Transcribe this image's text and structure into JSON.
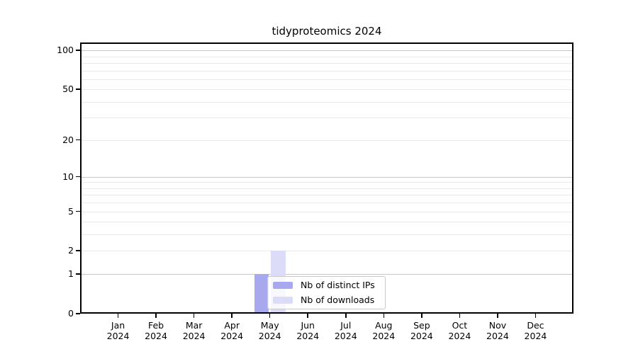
{
  "title": "tidyproteomics 2024",
  "chart_data": {
    "type": "bar",
    "title": "tidyproteomics 2024",
    "categories": [
      "Jan",
      "Feb",
      "Mar",
      "Apr",
      "May",
      "Jun",
      "Jul",
      "Aug",
      "Sep",
      "Oct",
      "Nov",
      "Dec"
    ],
    "category_year": "2024",
    "series": [
      {
        "name": "Nb of distinct IPs",
        "color": "#a8a8ee",
        "values": [
          0,
          0,
          0,
          0,
          1,
          0,
          0,
          0,
          0,
          0,
          0,
          0
        ]
      },
      {
        "name": "Nb of downloads",
        "color": "#dcdcf8",
        "values": [
          0,
          0,
          0,
          0,
          2,
          0,
          0,
          0,
          0,
          0,
          0,
          0
        ]
      }
    ],
    "xlabel": "",
    "ylabel": "",
    "y_axis": {
      "scale": "log1p",
      "labeled_ticks": [
        0,
        1,
        2,
        5,
        10,
        20,
        50,
        100
      ],
      "major_gridlines": [
        1,
        10,
        100
      ],
      "minor_gridlines": [
        2,
        3,
        4,
        5,
        6,
        7,
        8,
        9,
        20,
        30,
        40,
        50,
        60,
        70,
        80,
        90
      ],
      "min": 0,
      "max": 115
    },
    "grid": "horizontal",
    "legend": {
      "position": "inside-bottom-center",
      "entries": [
        "Nb of distinct IPs",
        "Nb of downloads"
      ]
    },
    "colors": {
      "major_grid": "#c6c6c6",
      "minor_grid": "#e9e9e9",
      "spine": "#000000",
      "text": "#000000",
      "background": "#ffffff"
    }
  }
}
